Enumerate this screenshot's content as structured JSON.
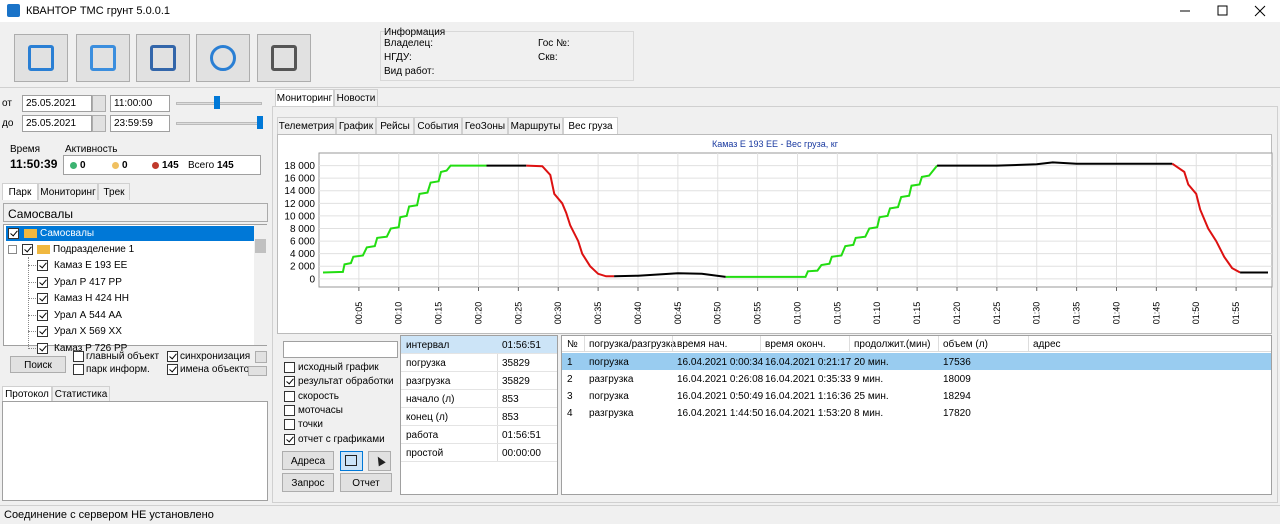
{
  "window": {
    "title": "КВАНТОР ТМС грунт 5.0.0.1"
  },
  "info": {
    "title": "Информация",
    "fields_left": [
      "Владелец:",
      "НГДУ:",
      "Вид работ:"
    ],
    "fields_right": [
      "Гос №:",
      "Скв:"
    ]
  },
  "period": {
    "from_label": "от",
    "from_date": "25.05.2021",
    "from_time": "11:00:00",
    "to_label": "до",
    "to_date": "25.05.2021",
    "to_time": "23:59:59"
  },
  "status": {
    "time_label": "Время",
    "time": "11:50:39",
    "activity_label": "Активность",
    "active": "0",
    "idle": "0",
    "offline": "145",
    "total_label": "Всего",
    "total": "145"
  },
  "park_tabs": [
    "Парк",
    "Мониторинг",
    "Трек"
  ],
  "group": "Самосвалы",
  "tree": {
    "root": "Самосвалы",
    "division": "Подразделение 1",
    "vehicles": [
      "Камаз Е 193 ЕЕ",
      "Урал Р 417 РР",
      "Камаз Н 424 НН",
      "Урал А 544 АА",
      "Урал Х 569 ХХ",
      "Камаз Р 726 РР"
    ]
  },
  "search": {
    "button": "Поиск",
    "options": [
      {
        "label": "главный объект",
        "checked": false
      },
      {
        "label": "парк информ.",
        "checked": false
      },
      {
        "label": "синхронизация",
        "checked": true
      },
      {
        "label": "имена объектов",
        "checked": true
      }
    ]
  },
  "log_tabs": [
    "Протокол",
    "Статистика"
  ],
  "main_tabs": [
    "Мониторинг",
    "Новости"
  ],
  "sub_tabs": [
    "Телеметрия",
    "График",
    "Рейсы",
    "События",
    "ГеоЗоны",
    "Маршруты",
    "Вес груза"
  ],
  "chart_data": {
    "type": "line",
    "title": "Камаз Е 193 ЕЕ - Вес груза, кг",
    "xlim": [
      0,
      119.5
    ],
    "ylim": [
      -1300,
      20000
    ],
    "grid": true,
    "xticks": [
      {
        "value": 5,
        "label": "00:05"
      },
      {
        "value": 10,
        "label": "00:10"
      },
      {
        "value": 15,
        "label": "00:15"
      },
      {
        "value": 20,
        "label": "00:20"
      },
      {
        "value": 25,
        "label": "00:25"
      },
      {
        "value": 30,
        "label": "00:30"
      },
      {
        "value": 35,
        "label": "00:35"
      },
      {
        "value": 40,
        "label": "00:40"
      },
      {
        "value": 45,
        "label": "00:45"
      },
      {
        "value": 50,
        "label": "00:50"
      },
      {
        "value": 55,
        "label": "00:55"
      },
      {
        "value": 60,
        "label": "01:00"
      },
      {
        "value": 65,
        "label": "01:05"
      },
      {
        "value": 70,
        "label": "01:10"
      },
      {
        "value": 75,
        "label": "01:15"
      },
      {
        "value": 80,
        "label": "01:20"
      },
      {
        "value": 85,
        "label": "01:25"
      },
      {
        "value": 90,
        "label": "01:30"
      },
      {
        "value": 95,
        "label": "01:35"
      },
      {
        "value": 100,
        "label": "01:40"
      },
      {
        "value": 105,
        "label": "01:45"
      },
      {
        "value": 110,
        "label": "01:50"
      },
      {
        "value": 115,
        "label": "01:55"
      }
    ],
    "yticks": [
      0,
      {
        "value": 2000,
        "label": "2 000"
      },
      {
        "value": 4000,
        "label": "4 000"
      },
      {
        "value": 6000,
        "label": "6 000"
      },
      {
        "value": 8000,
        "label": "8 000"
      },
      {
        "value": 10000,
        "label": "10 000"
      },
      {
        "value": 12000,
        "label": "12 000"
      },
      {
        "value": 14000,
        "label": "14 000"
      },
      {
        "value": 16000,
        "label": "16 000"
      },
      {
        "value": 18000,
        "label": "18 000"
      }
    ],
    "series": [
      {
        "color": "#22dd11",
        "x": [
          0.5,
          3,
          3.2,
          4,
          4.3,
          5.5,
          6,
          7,
          7.3,
          8.5,
          9,
          10,
          10.2,
          11,
          11.3,
          12.3,
          12.6,
          13.6,
          14,
          15,
          15.3,
          16,
          16.5,
          21
        ],
        "values": [
          1000,
          1100,
          2300,
          2500,
          3500,
          3700,
          5000,
          5200,
          6500,
          6700,
          8000,
          8200,
          9800,
          10000,
          11500,
          11700,
          13500,
          13700,
          15300,
          15500,
          17000,
          17200,
          18000,
          18000
        ]
      },
      {
        "color": "#000000",
        "x": [
          21,
          26
        ],
        "values": [
          18000,
          18000
        ]
      },
      {
        "color": "#dd1111",
        "x": [
          26,
          28,
          29,
          29.5,
          30.5,
          31,
          31.5,
          32.5,
          33,
          34,
          35,
          36,
          37
        ],
        "values": [
          18000,
          17900,
          16500,
          13500,
          12000,
          10500,
          8500,
          6000,
          4000,
          2000,
          800,
          400,
          400
        ]
      },
      {
        "color": "#000000",
        "x": [
          37,
          40,
          45,
          48,
          51
        ],
        "values": [
          400,
          500,
          900,
          800,
          300
        ]
      },
      {
        "color": "#22dd11",
        "x": [
          51,
          61,
          61.3,
          62.5,
          63,
          64,
          64.3,
          65.5,
          66,
          67,
          67.3,
          68.5,
          69,
          70,
          70.3,
          71.3,
          71.6,
          72.6,
          73,
          74,
          74.3,
          75.3,
          75.6,
          76.5,
          77.5
        ],
        "values": [
          300,
          300,
          1200,
          1300,
          2200,
          2400,
          3500,
          3700,
          5200,
          5400,
          6500,
          6700,
          8000,
          8200,
          9800,
          10000,
          11200,
          11400,
          13000,
          13200,
          14800,
          15000,
          16200,
          16400,
          18000
        ]
      },
      {
        "color": "#000000",
        "x": [
          77.5,
          85,
          90,
          92,
          95,
          100,
          107
        ],
        "values": [
          18000,
          18000,
          18200,
          18500,
          18300,
          18300,
          18300
        ]
      },
      {
        "color": "#dd1111",
        "x": [
          107,
          108.5,
          109,
          110,
          110.5,
          111.5,
          112.5,
          113.5,
          114.5,
          115.5
        ],
        "values": [
          18300,
          17000,
          15000,
          13500,
          11000,
          8000,
          6000,
          3500,
          1700,
          1000
        ]
      },
      {
        "color": "#000000",
        "x": [
          115.5,
          119
        ],
        "values": [
          1000,
          1000
        ]
      }
    ]
  },
  "report": {
    "options": [
      {
        "label": "исходный график",
        "checked": false
      },
      {
        "label": "результат обработки",
        "checked": true
      },
      {
        "label": "скорость",
        "checked": false
      },
      {
        "label": "моточасы",
        "checked": false
      },
      {
        "label": "точки",
        "checked": false
      },
      {
        "label": "отчет с графиками",
        "checked": true
      }
    ],
    "buttons": [
      "Адреса",
      "Запрос",
      "Отчет"
    ],
    "summary": [
      [
        "интервал",
        "01:56:51"
      ],
      [
        "погрузка",
        "35829"
      ],
      [
        "разгрузка",
        "35829"
      ],
      [
        "начало (л)",
        "853"
      ],
      [
        "конец (л)",
        "853"
      ],
      [
        "работа",
        "01:56:51"
      ],
      [
        "простой",
        "00:00:00"
      ]
    ],
    "columns": [
      "№",
      "погрузка/разгрузка",
      "время нач.",
      "время оконч.",
      "продолжит.(мин)",
      "объем (л)",
      "адрес"
    ],
    "rows": [
      [
        "1",
        "погрузка",
        "16.04.2021 0:00:34",
        "16.04.2021 0:21:17",
        "20 мин.",
        "17536"
      ],
      [
        "2",
        "разгрузка",
        "16.04.2021 0:26:08",
        "16.04.2021 0:35:33",
        "9 мин.",
        "18009"
      ],
      [
        "3",
        "погрузка",
        "16.04.2021 0:50:49",
        "16.04.2021 1:16:36",
        "25 мин.",
        "18294"
      ],
      [
        "4",
        "разгрузка",
        "16.04.2021 1:44:50",
        "16.04.2021 1:53:20",
        "8 мин.",
        "17820"
      ]
    ]
  },
  "statusbar": "Соединение с сервером НЕ установлено"
}
